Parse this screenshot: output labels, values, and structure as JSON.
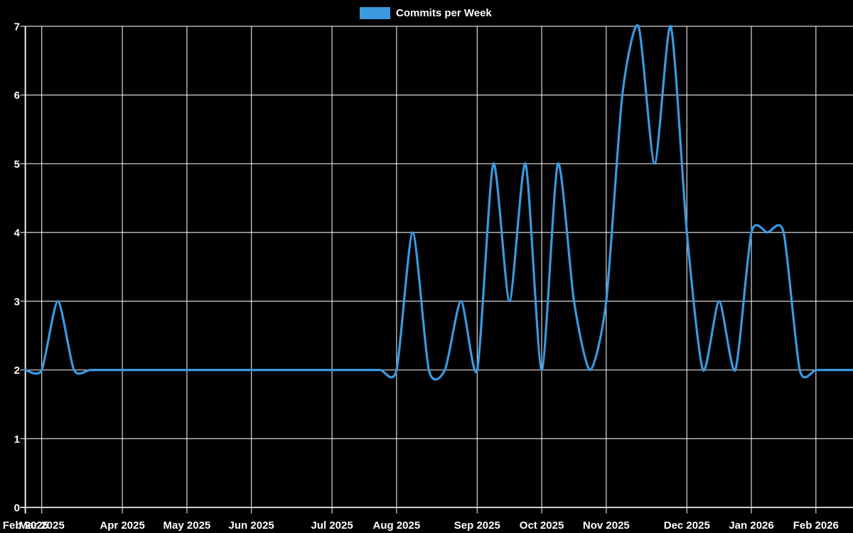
{
  "colors": {
    "background": "#000000",
    "grid": "#ffffff",
    "text": "#ffffff",
    "line": "#3b99e0"
  },
  "chart_data": {
    "type": "line",
    "title": "",
    "legend_position": "top",
    "grid": true,
    "x_unit": "week",
    "ylim": [
      0,
      7
    ],
    "y_ticks": [
      0,
      1,
      2,
      3,
      4,
      5,
      6,
      7
    ],
    "x_ticks": [
      {
        "label": "Feb 2025",
        "week": 0
      },
      {
        "label": "Mar 2025",
        "week": 1
      },
      {
        "label": "Apr 2025",
        "week": 6
      },
      {
        "label": "May 2025",
        "week": 10
      },
      {
        "label": "Jun 2025",
        "week": 14
      },
      {
        "label": "Jul 2025",
        "week": 19
      },
      {
        "label": "Aug 2025",
        "week": 23
      },
      {
        "label": "Sep 2025",
        "week": 28
      },
      {
        "label": "Oct 2025",
        "week": 32
      },
      {
        "label": "Nov 2025",
        "week": 36
      },
      {
        "label": "Dec 2025",
        "week": 41
      },
      {
        "label": "Jan 2026",
        "week": 45
      },
      {
        "label": "Feb 2026",
        "week": 49
      }
    ],
    "series": [
      {
        "name": "Commits per Week",
        "color": "#3b99e0",
        "values": [
          2,
          2,
          3,
          2,
          2,
          2,
          2,
          2,
          2,
          2,
          2,
          2,
          2,
          2,
          2,
          2,
          2,
          2,
          2,
          2,
          2,
          2,
          2,
          2,
          4,
          2,
          2,
          3,
          2,
          5,
          3,
          5,
          2,
          5,
          3,
          2,
          3,
          6,
          7,
          5,
          7,
          4,
          2,
          3,
          2,
          4,
          4,
          4,
          2,
          2,
          2,
          2
        ]
      }
    ]
  }
}
